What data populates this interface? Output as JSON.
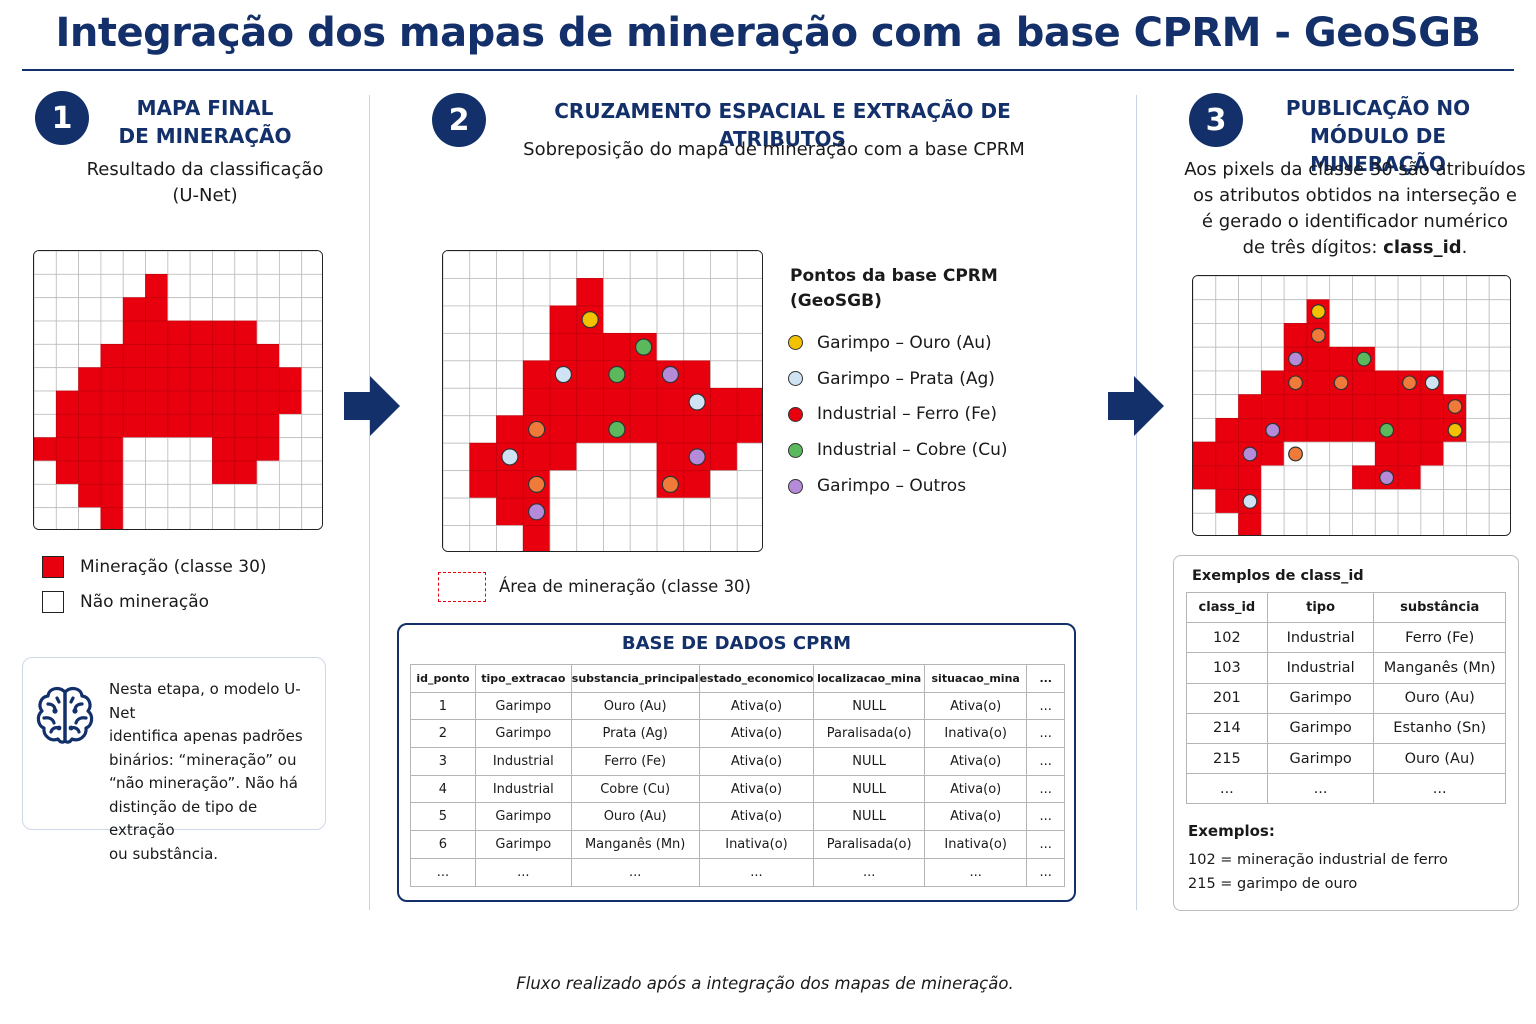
{
  "title": "Integração dos mapas de mineração com a base CPRM - GeoSGB",
  "colors": {
    "navy": "#13306b",
    "mining_red": "#e8000f",
    "gold": "#f2c200",
    "light_blue": "#cfe3f5",
    "red_point": "#e8000f",
    "green": "#5cb85c",
    "purple": "#b58ad9",
    "orange": "#f07a3a"
  },
  "step1": {
    "number": "1",
    "heading_line1": "MAPA FINAL",
    "heading_line2": "DE MINERAÇÃO",
    "sub_line1": "Resultado da classificação",
    "sub_line2": "(U-Net)",
    "legend": [
      {
        "label": "Mineração (classe 30)"
      },
      {
        "label": "Não mineração"
      }
    ],
    "note": {
      "icon": "brain-icon",
      "lines": [
        "Nesta etapa, o modelo U-Net",
        "identifica apenas padrões",
        "binários: “mineração” ou",
        "“não mineração”. Não há",
        "distinção de tipo de extração",
        "ou substância."
      ]
    }
  },
  "step2": {
    "number": "2",
    "heading": "CRUZAMENTO ESPACIAL E EXTRAÇÃO DE ATRIBUTOS",
    "sub": "Sobreposição do mapa de mineração com a base CPRM",
    "points_title_line1": "Pontos da base CPRM",
    "points_title_line2": "(GeoSGB)",
    "points_legend": [
      {
        "label": "Garimpo – Ouro (Au)",
        "color": "#f2c200"
      },
      {
        "label": "Garimpo – Prata (Ag)",
        "color": "#cfe3f5"
      },
      {
        "label": "Industrial – Ferro (Fe)",
        "color": "#e8000f"
      },
      {
        "label": "Industrial – Cobre (Cu)",
        "color": "#5cb85c"
      },
      {
        "label": "Garimpo – Outros",
        "color": "#b58ad9"
      }
    ],
    "area_legend": "Área de mineração (classe 30)",
    "db": {
      "title": "BASE DE DADOS CPRM",
      "columns": [
        "id_ponto",
        "tipo_extracao",
        "substancia_principal",
        "estado_economico",
        "localizacao_mina",
        "situacao_mina",
        "..."
      ],
      "rows": [
        [
          "1",
          "Garimpo",
          "Ouro (Au)",
          "Ativa(o)",
          "NULL",
          "Ativa(o)",
          "..."
        ],
        [
          "2",
          "Garimpo",
          "Prata (Ag)",
          "Ativa(o)",
          "Paralisada(o)",
          "Inativa(o)",
          "..."
        ],
        [
          "3",
          "Industrial",
          "Ferro (Fe)",
          "Ativa(o)",
          "NULL",
          "Ativa(o)",
          "..."
        ],
        [
          "4",
          "Industrial",
          "Cobre (Cu)",
          "Ativa(o)",
          "NULL",
          "Ativa(o)",
          "..."
        ],
        [
          "5",
          "Garimpo",
          "Ouro (Au)",
          "Ativa(o)",
          "NULL",
          "Ativa(o)",
          "..."
        ],
        [
          "6",
          "Garimpo",
          "Manganês (Mn)",
          "Inativa(o)",
          "Paralisada(o)",
          "Inativa(o)",
          "..."
        ],
        [
          "...",
          "...",
          "...",
          "...",
          "...",
          "...",
          "..."
        ]
      ]
    }
  },
  "step3": {
    "number": "3",
    "heading_line1": "PUBLICAÇÃO NO",
    "heading_line2": "MÓDULO DE MINERAÇÃO",
    "sub_line1": "Aos pixels da classe 30 são atribuídos",
    "sub_line2": "os atributos obtidos na interseção e",
    "sub_line3": "é gerado o identificador numérico",
    "sub_line4_prefix": "de três dígitos: ",
    "sub_line4_bold": "class_id",
    "sub_line4_suffix": ".",
    "examples_box": {
      "title": "Exemplos de class_id",
      "columns": [
        "class_id",
        "tipo",
        "substância"
      ],
      "rows": [
        [
          "102",
          "Industrial",
          "Ferro (Fe)"
        ],
        [
          "103",
          "Industrial",
          "Manganês (Mn)"
        ],
        [
          "201",
          "Garimpo",
          "Ouro (Au)"
        ],
        [
          "214",
          "Garimpo",
          "Estanho (Sn)"
        ],
        [
          "215",
          "Garimpo",
          "Ouro (Au)"
        ],
        [
          "...",
          "...",
          "..."
        ]
      ],
      "examples_title": "Exemplos:",
      "example_lines": [
        "102 = mineração industrial de ferro",
        "215 = garimpo de ouro"
      ]
    }
  },
  "caption": "Fluxo realizado após a integração dos mapas de mineração."
}
